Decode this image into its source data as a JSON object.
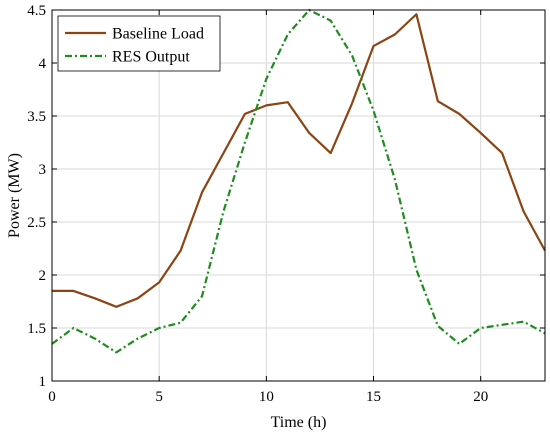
{
  "chart_data": {
    "type": "line",
    "xlabel": "Time (h)",
    "ylabel": "Power (MW)",
    "xlim": [
      0,
      23
    ],
    "ylim": [
      1,
      4.5
    ],
    "x_ticks": [
      0,
      5,
      10,
      15,
      20
    ],
    "x_tick_labels": [
      "0",
      "5",
      "10",
      "15",
      "20"
    ],
    "y_ticks": [
      1,
      1.5,
      2,
      2.5,
      3,
      3.5,
      4,
      4.5
    ],
    "y_tick_labels": [
      "1",
      "1.5",
      "2",
      "2.5",
      "3",
      "3.5",
      "4",
      "4.5"
    ],
    "grid": true,
    "legend_position": "top-left",
    "x": [
      0,
      1,
      2,
      3,
      4,
      5,
      6,
      7,
      8,
      9,
      10,
      11,
      12,
      13,
      14,
      15,
      16,
      17,
      18,
      19,
      20,
      21,
      22,
      23
    ],
    "series": [
      {
        "name": "Baseline Load",
        "color": "#8B4513",
        "dash": "solid",
        "values": [
          1.85,
          1.85,
          1.78,
          1.7,
          1.78,
          1.93,
          2.23,
          2.78,
          3.15,
          3.52,
          3.6,
          3.63,
          3.34,
          3.15,
          3.62,
          4.16,
          4.27,
          4.46,
          3.64,
          3.52,
          3.34,
          3.15,
          2.6,
          2.23
        ]
      },
      {
        "name": "RES Output",
        "color": "#1E8C1E",
        "dash": "dashdot",
        "values": [
          1.35,
          1.5,
          1.4,
          1.27,
          1.4,
          1.5,
          1.55,
          1.8,
          2.6,
          3.25,
          3.85,
          4.27,
          4.5,
          4.4,
          4.07,
          3.55,
          2.9,
          2.05,
          1.52,
          1.35,
          1.5,
          1.53,
          1.56,
          1.45
        ]
      }
    ]
  }
}
